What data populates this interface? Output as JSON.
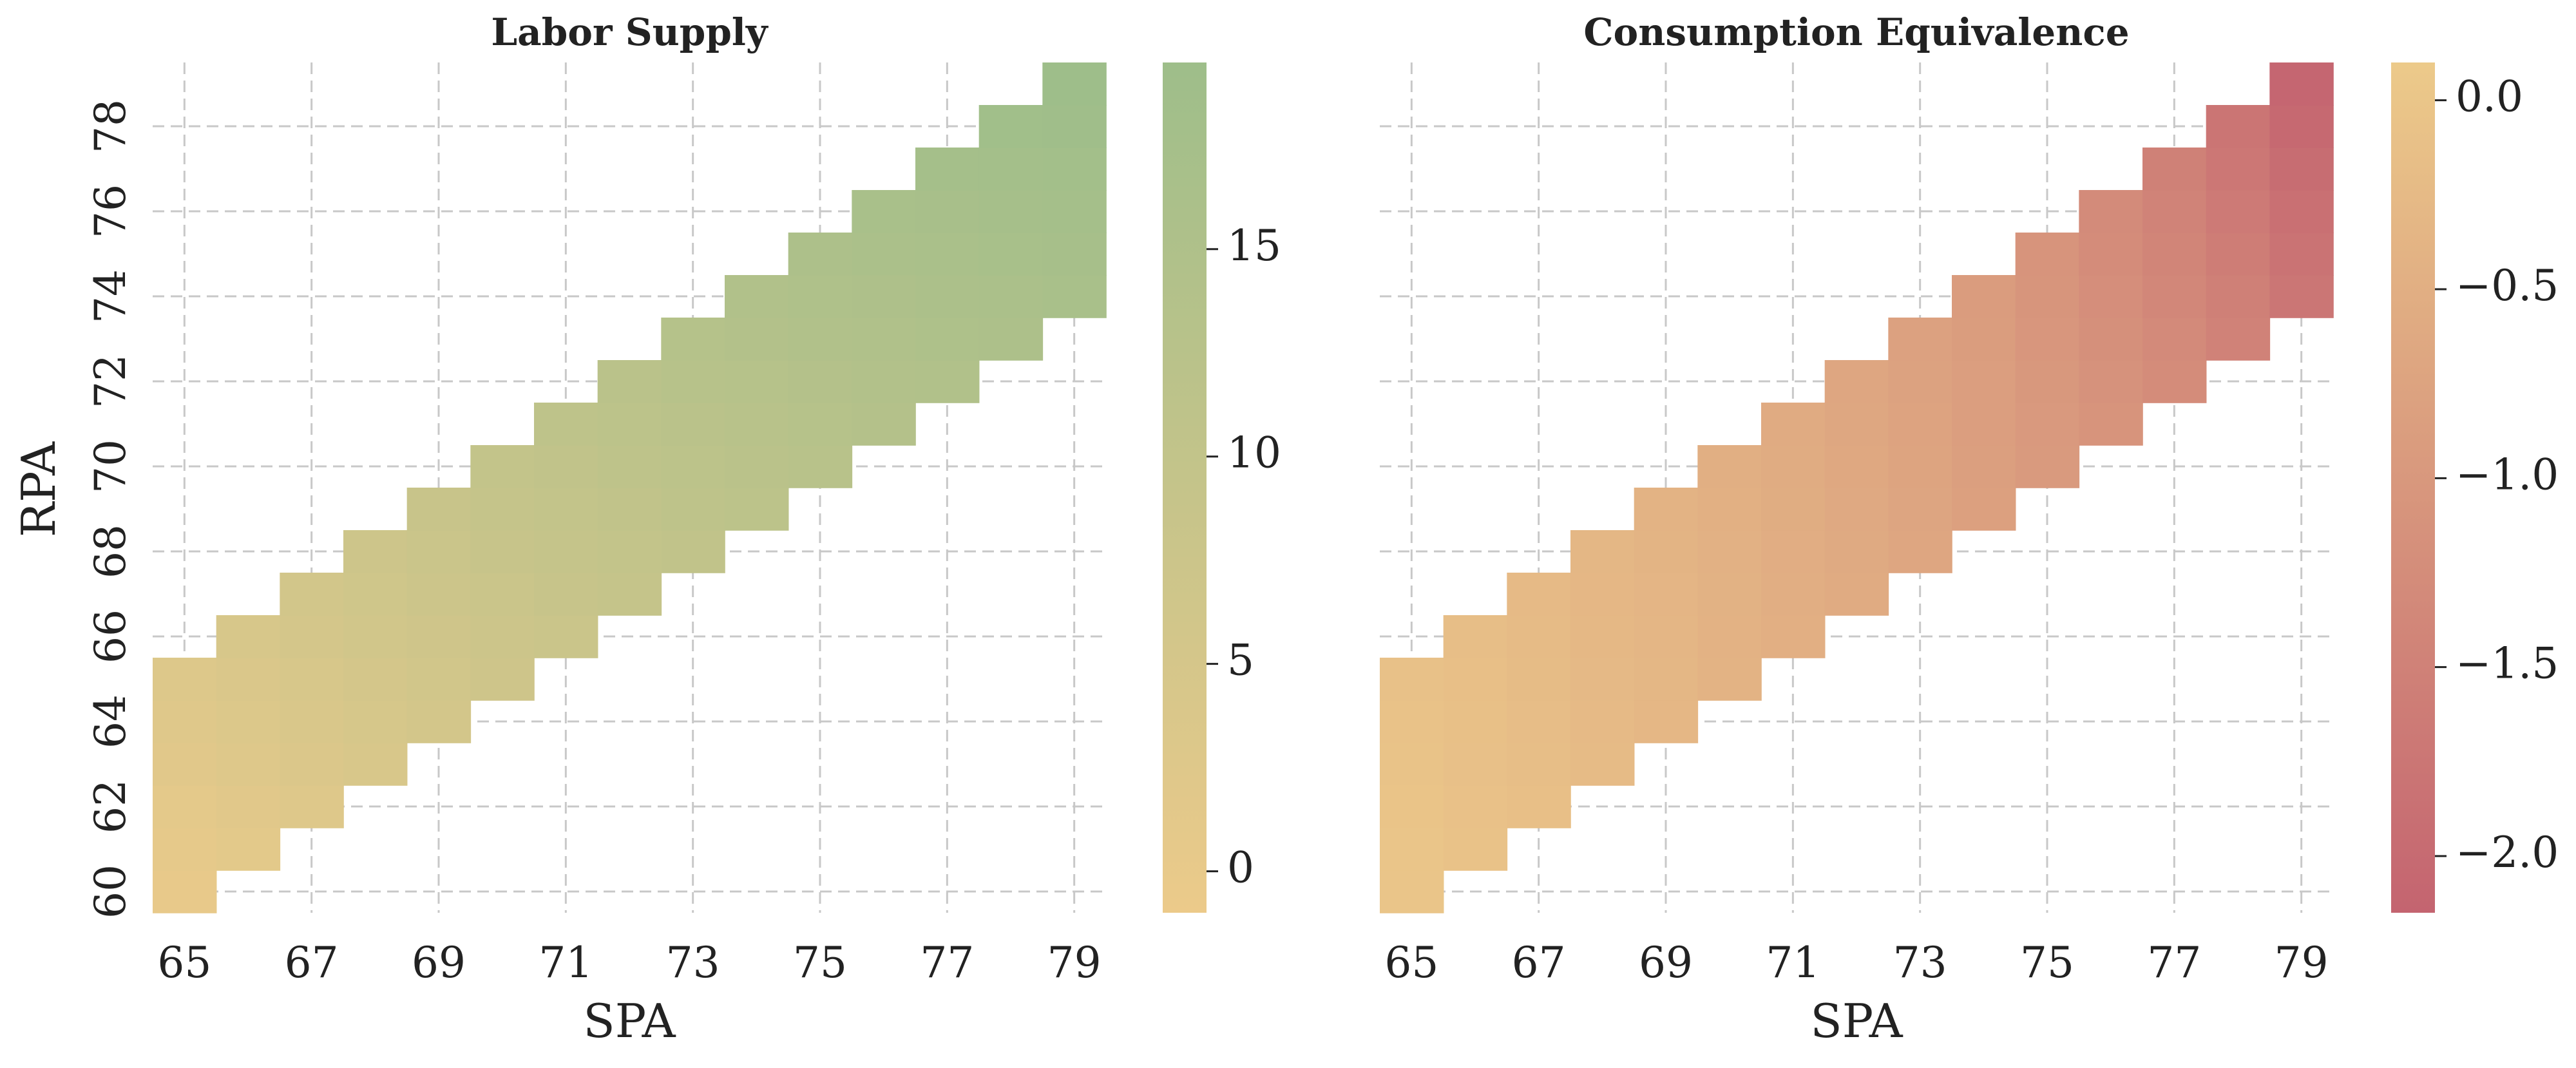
{
  "chart_data": [
    {
      "type": "heatmap",
      "title": "Labor Supply",
      "xlabel": "SPA",
      "ylabel": "RPA",
      "x_values": [
        65,
        66,
        67,
        68,
        69,
        70,
        71,
        72,
        73,
        74,
        75,
        76,
        77,
        78,
        79
      ],
      "y_values": [
        60,
        61,
        62,
        63,
        64,
        65,
        66,
        67,
        68,
        69,
        70,
        71,
        72,
        73,
        74,
        75,
        76,
        77,
        78,
        79
      ],
      "x_tick_labels": [
        "65",
        "67",
        "69",
        "71",
        "73",
        "75",
        "77",
        "79"
      ],
      "y_tick_labels": [
        "60",
        "62",
        "64",
        "66",
        "68",
        "70",
        "72",
        "74",
        "76",
        "78"
      ],
      "cell_rule": "cell present when SPA-5 <= RPA <= SPA, i.e. RPA in [SPA-5, SPA]",
      "cells": [
        {
          "spa": 65,
          "values": [
            0,
            0.6,
            1.2,
            1.8,
            2.4,
            3.0
          ]
        },
        {
          "spa": 66,
          "values": [
            1.4,
            2.0,
            2.6,
            3.2,
            3.8,
            4.4
          ]
        },
        {
          "spa": 67,
          "values": [
            2.8,
            3.4,
            4.0,
            4.6,
            5.2,
            5.8
          ]
        },
        {
          "spa": 68,
          "values": [
            4.2,
            4.8,
            5.4,
            6.0,
            6.6,
            7.2
          ]
        },
        {
          "spa": 69,
          "values": [
            5.5,
            6.1,
            6.7,
            7.3,
            7.9,
            8.5
          ]
        },
        {
          "spa": 70,
          "values": [
            6.8,
            7.4,
            8.0,
            8.6,
            9.2,
            9.8
          ]
        },
        {
          "spa": 71,
          "values": [
            8.0,
            8.6,
            9.2,
            9.8,
            10.4,
            11.0
          ]
        },
        {
          "spa": 72,
          "values": [
            9.2,
            9.8,
            10.4,
            11.0,
            11.6,
            12.2
          ]
        },
        {
          "spa": 73,
          "values": [
            10.4,
            11.0,
            11.6,
            12.2,
            12.8,
            13.4
          ]
        },
        {
          "spa": 74,
          "values": [
            11.5,
            12.1,
            12.7,
            13.3,
            13.9,
            14.5
          ]
        },
        {
          "spa": 75,
          "values": [
            12.6,
            13.2,
            13.8,
            14.4,
            15.0,
            15.6
          ]
        },
        {
          "spa": 76,
          "values": [
            13.6,
            14.2,
            14.8,
            15.4,
            16.0,
            16.6
          ]
        },
        {
          "spa": 77,
          "values": [
            14.6,
            15.2,
            15.8,
            16.4,
            17.0,
            17.6
          ]
        },
        {
          "spa": 78,
          "values": [
            15.6,
            16.2,
            16.8,
            17.4,
            18.0,
            18.6
          ]
        },
        {
          "spa": 79,
          "values": [
            16.5,
            17.1,
            17.7,
            18.3,
            18.9,
            19.5
          ]
        }
      ],
      "colorbar": {
        "vmin": -1,
        "vmax": 19.5,
        "ticks": [
          0,
          5,
          10,
          15
        ],
        "tick_labels": [
          "0",
          "5",
          "10",
          "15"
        ],
        "color_low": "#ecca8a",
        "color_high": "#9ebe8a"
      },
      "grid": true
    },
    {
      "type": "heatmap",
      "title": "Consumption Equivalence",
      "xlabel": "SPA",
      "ylabel": "",
      "x_values": [
        65,
        66,
        67,
        68,
        69,
        70,
        71,
        72,
        73,
        74,
        75,
        76,
        77,
        78,
        79
      ],
      "y_values": [
        60,
        61,
        62,
        63,
        64,
        65,
        66,
        67,
        68,
        69,
        70,
        71,
        72,
        73,
        74,
        75,
        76,
        77,
        78,
        79
      ],
      "x_tick_labels": [
        "65",
        "67",
        "69",
        "71",
        "73",
        "75",
        "77",
        "79"
      ],
      "y_tick_labels": [],
      "cell_rule": "cell present when SPA-5 <= RPA <= SPA, i.e. RPA in [SPA-5, SPA]",
      "cells": [
        {
          "spa": 65,
          "values": [
            0.0,
            -0.02,
            -0.04,
            -0.06,
            -0.08,
            -0.1
          ]
        },
        {
          "spa": 66,
          "values": [
            -0.07,
            -0.09,
            -0.11,
            -0.13,
            -0.15,
            -0.17
          ]
        },
        {
          "spa": 67,
          "values": [
            -0.15,
            -0.17,
            -0.19,
            -0.21,
            -0.23,
            -0.25
          ]
        },
        {
          "spa": 68,
          "values": [
            -0.23,
            -0.25,
            -0.27,
            -0.29,
            -0.31,
            -0.33
          ]
        },
        {
          "spa": 69,
          "values": [
            -0.31,
            -0.33,
            -0.35,
            -0.37,
            -0.39,
            -0.41
          ]
        },
        {
          "spa": 70,
          "values": [
            -0.4,
            -0.42,
            -0.44,
            -0.46,
            -0.48,
            -0.5
          ]
        },
        {
          "spa": 71,
          "values": [
            -0.49,
            -0.51,
            -0.53,
            -0.55,
            -0.57,
            -0.59
          ]
        },
        {
          "spa": 72,
          "values": [
            -0.59,
            -0.61,
            -0.63,
            -0.65,
            -0.67,
            -0.69
          ]
        },
        {
          "spa": 73,
          "values": [
            -0.7,
            -0.72,
            -0.74,
            -0.76,
            -0.78,
            -0.8
          ]
        },
        {
          "spa": 74,
          "values": [
            -0.82,
            -0.84,
            -0.86,
            -0.88,
            -0.9,
            -0.92
          ]
        },
        {
          "spa": 75,
          "values": [
            -0.95,
            -0.98,
            -1.01,
            -1.04,
            -1.07,
            -1.1
          ]
        },
        {
          "spa": 76,
          "values": [
            -1.1,
            -1.14,
            -1.18,
            -1.22,
            -1.26,
            -1.3
          ]
        },
        {
          "spa": 77,
          "values": [
            -1.27,
            -1.32,
            -1.37,
            -1.42,
            -1.47,
            -1.52
          ]
        },
        {
          "spa": 78,
          "values": [
            -1.48,
            -1.54,
            -1.6,
            -1.66,
            -1.72,
            -1.78
          ]
        },
        {
          "spa": 79,
          "values": [
            -1.75,
            -1.82,
            -1.89,
            -1.96,
            -2.03,
            -2.1
          ]
        }
      ],
      "colorbar": {
        "vmin": -2.15,
        "vmax": 0.1,
        "ticks": [
          0.0,
          -0.5,
          -1.0,
          -1.5,
          -2.0
        ],
        "tick_labels": [
          "0.0",
          "−0.5",
          "−1.0",
          "−1.5",
          "−2.0"
        ],
        "color_low": "#c46470",
        "color_high": "#ecca8a"
      },
      "grid": true
    }
  ]
}
